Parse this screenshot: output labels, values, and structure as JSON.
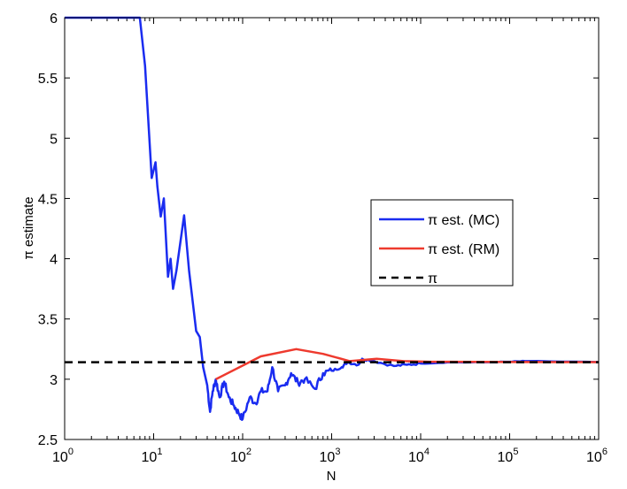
{
  "chart_data": {
    "type": "line",
    "title": "",
    "xlabel": "N",
    "ylabel": "π estimate",
    "xscale": "log",
    "xlim": [
      1,
      1000000
    ],
    "ylim": [
      2.5,
      6
    ],
    "x_tick_base": "10",
    "x_tick_exponents": [
      "0",
      "1",
      "2",
      "3",
      "4",
      "5",
      "6"
    ],
    "y_ticks": [
      "2.5",
      "3",
      "3.5",
      "4",
      "4.5",
      "5",
      "5.5",
      "6"
    ],
    "legend_position": "right",
    "series": [
      {
        "name": "π est. (MC)",
        "color": "#1a2cf0",
        "style": "solid",
        "points": [
          [
            1,
            6
          ],
          [
            7,
            6
          ],
          [
            8,
            5.6
          ],
          [
            9.5,
            4.67
          ],
          [
            10.5,
            4.8
          ],
          [
            11,
            4.6
          ],
          [
            12,
            4.35
          ],
          [
            13,
            4.5
          ],
          [
            14.5,
            3.85
          ],
          [
            15.5,
            4.0
          ],
          [
            16.5,
            3.75
          ],
          [
            18,
            3.9
          ],
          [
            22,
            4.36
          ],
          [
            25,
            3.9
          ],
          [
            30,
            3.4
          ],
          [
            33,
            3.35
          ],
          [
            36,
            3.1
          ],
          [
            40,
            2.95
          ],
          [
            43,
            2.73
          ],
          [
            46,
            2.9
          ],
          [
            50,
            3.0
          ],
          [
            55,
            2.85
          ],
          [
            62,
            2.98
          ],
          [
            70,
            2.85
          ],
          [
            80,
            2.78
          ],
          [
            90,
            2.72
          ],
          [
            100,
            2.67
          ],
          [
            120,
            2.85
          ],
          [
            140,
            2.8
          ],
          [
            160,
            2.9
          ],
          [
            190,
            2.9
          ],
          [
            215,
            3.1
          ],
          [
            250,
            2.9
          ],
          [
            300,
            2.95
          ],
          [
            350,
            3.05
          ],
          [
            420,
            2.97
          ],
          [
            500,
            3.0
          ],
          [
            650,
            2.92
          ],
          [
            800,
            3.05
          ],
          [
            1000,
            3.07
          ],
          [
            1300,
            3.1
          ],
          [
            1500,
            3.14
          ],
          [
            2000,
            3.12
          ],
          [
            2200,
            3.17
          ],
          [
            3000,
            3.15
          ],
          [
            5000,
            3.11
          ],
          [
            7000,
            3.12
          ],
          [
            10000,
            3.13
          ],
          [
            20000,
            3.14
          ],
          [
            50000,
            3.14
          ],
          [
            100000,
            3.145
          ],
          [
            150000,
            3.15
          ],
          [
            1000000,
            3.142
          ]
        ]
      },
      {
        "name": "π est. (RM)",
        "color": "#ee3a2e",
        "style": "solid",
        "points": [
          [
            50,
            3.0
          ],
          [
            160,
            3.19
          ],
          [
            400,
            3.25
          ],
          [
            800,
            3.21
          ],
          [
            1600,
            3.15
          ],
          [
            3200,
            3.17
          ],
          [
            6400,
            3.15
          ],
          [
            12800,
            3.145
          ],
          [
            100000,
            3.143
          ],
          [
            1000000,
            3.142
          ]
        ]
      },
      {
        "name": "π",
        "color": "#000000",
        "style": "dashed",
        "points": [
          [
            1,
            3.14159
          ],
          [
            1000000,
            3.14159
          ]
        ]
      }
    ]
  }
}
